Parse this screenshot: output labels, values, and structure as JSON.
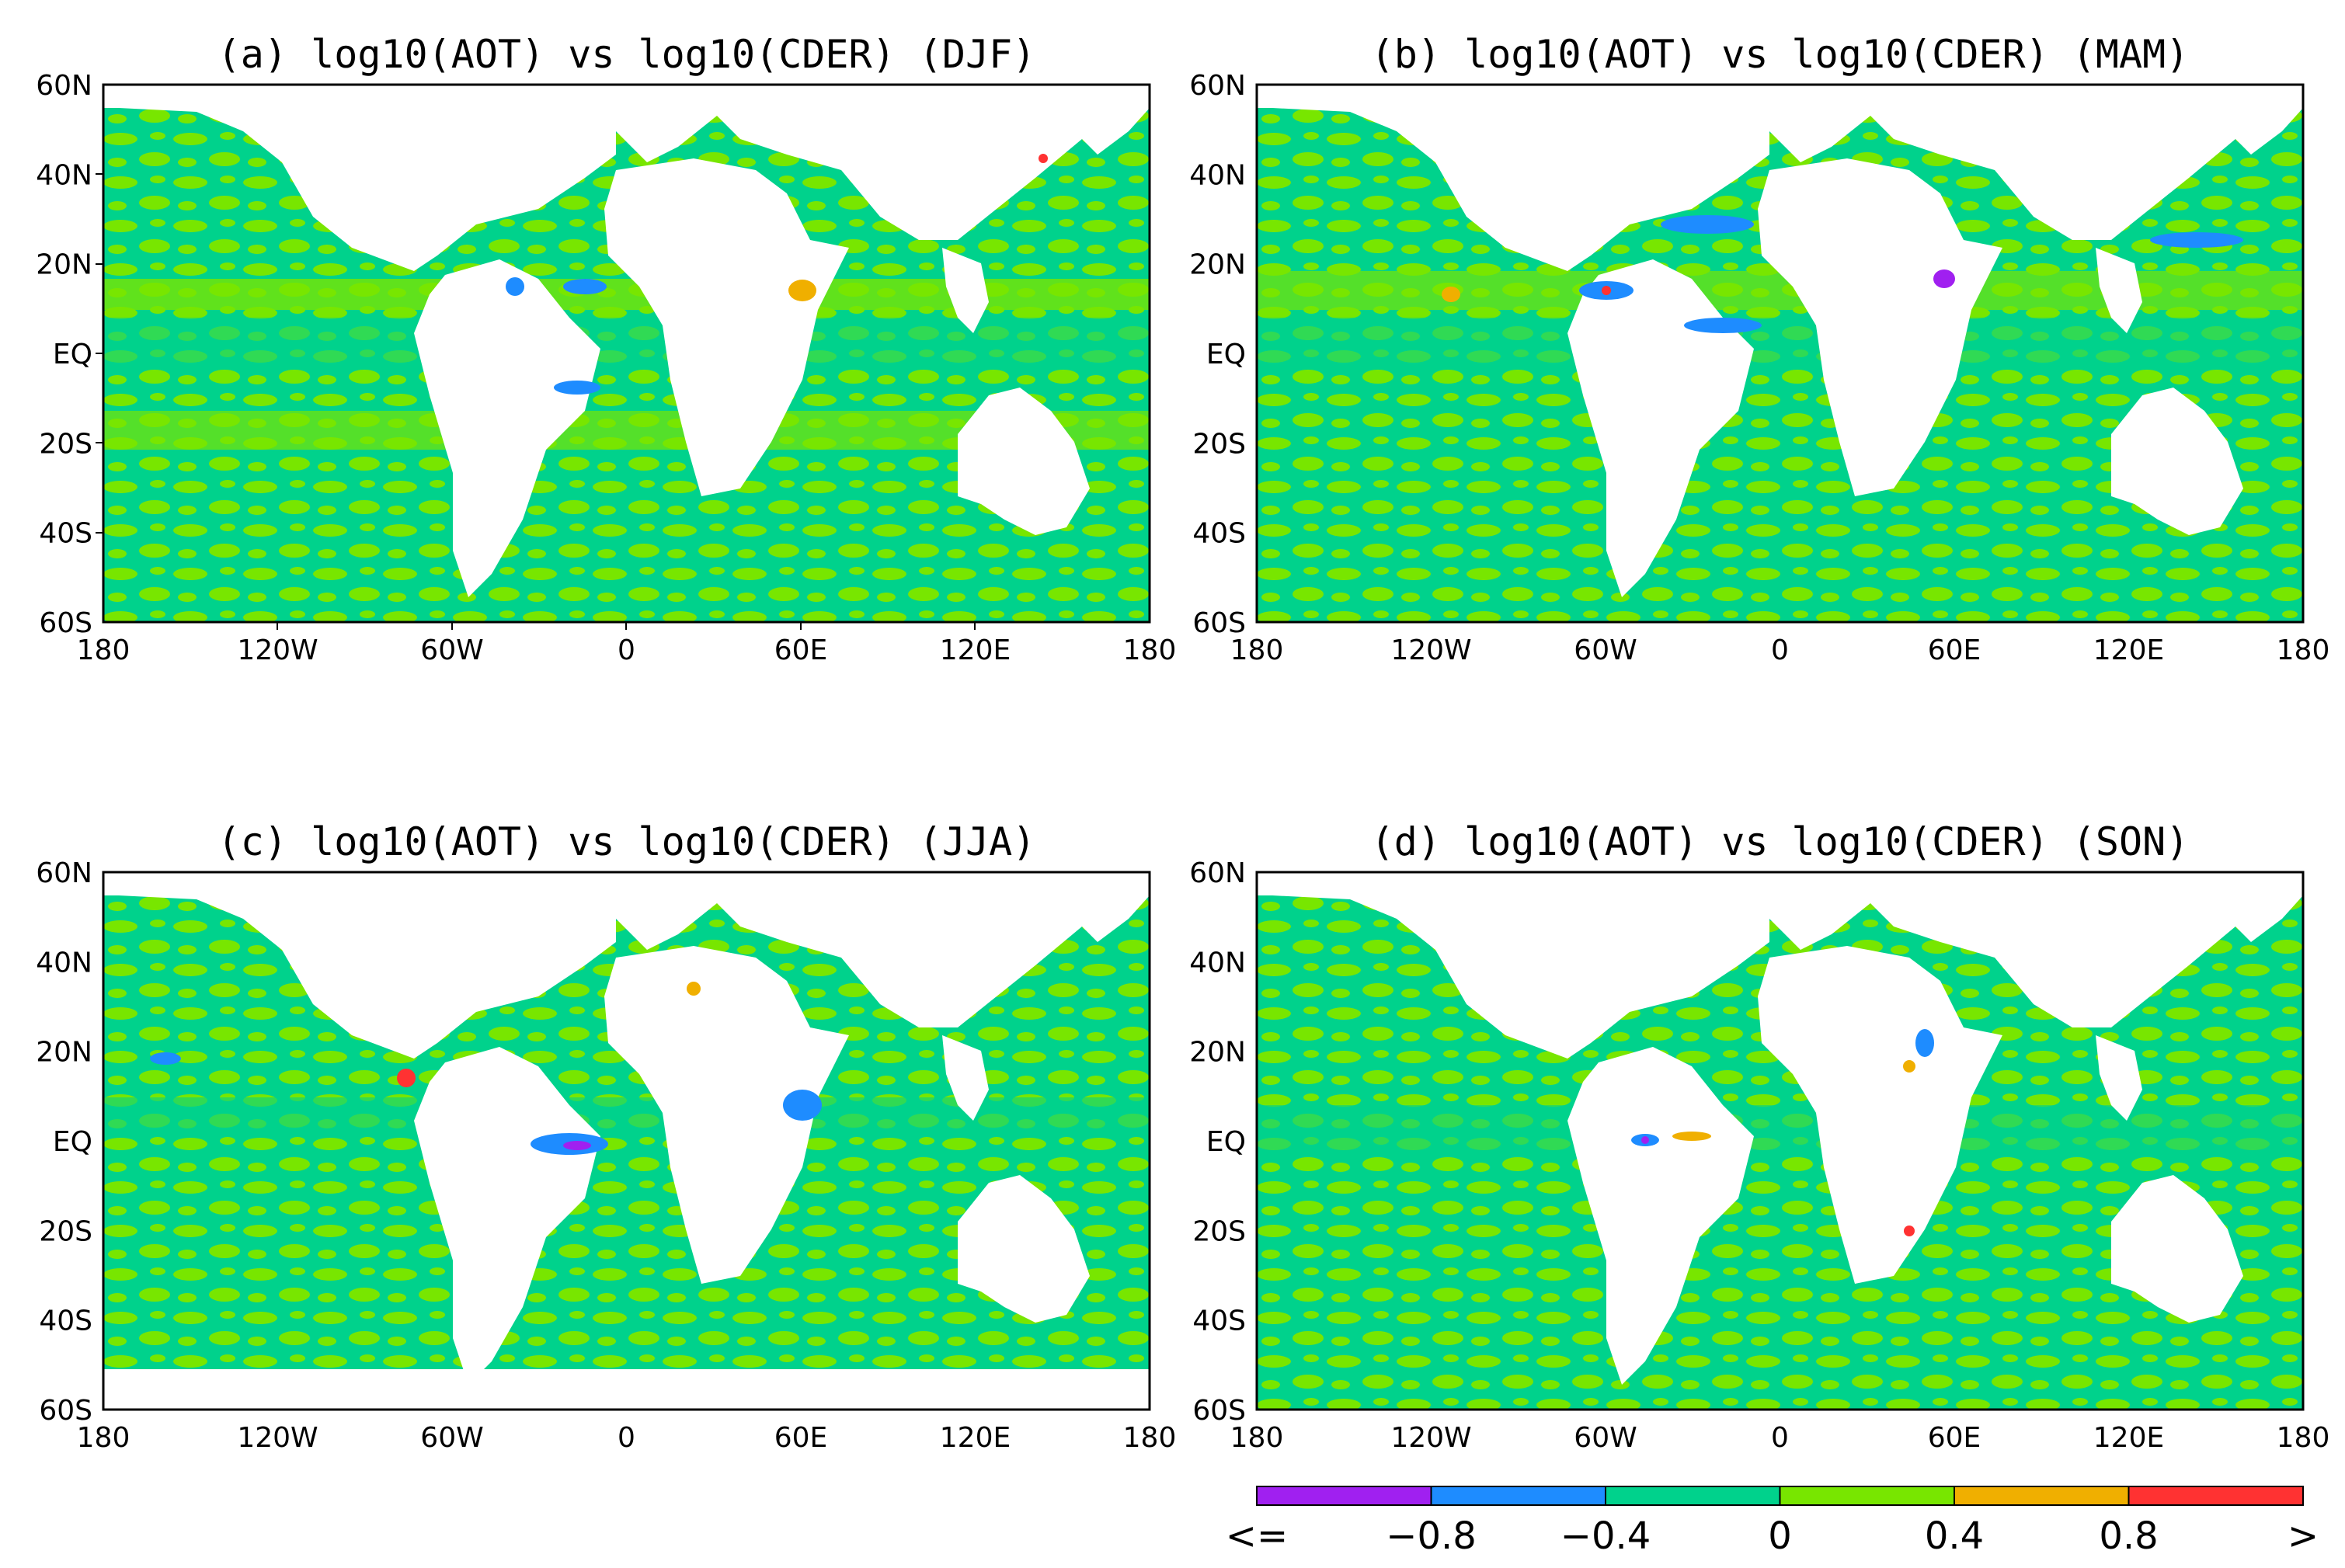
{
  "panels": [
    {
      "id": "a",
      "title": "(a) log10(AOT) vs log10(CDER) (DJF)"
    },
    {
      "id": "b",
      "title": "(b) log10(AOT) vs log10(CDER) (MAM)"
    },
    {
      "id": "c",
      "title": "(c) log10(AOT) vs log10(CDER) (JJA)"
    },
    {
      "id": "d",
      "title": "(d) log10(AOT) vs log10(CDER) (SON)"
    }
  ],
  "lat_ticks": [
    "60N",
    "40N",
    "20N",
    "EQ",
    "20S",
    "40S",
    "60S"
  ],
  "lon_ticks": [
    "180",
    "120W",
    "60W",
    "0",
    "60E",
    "120E",
    "180"
  ],
  "map_extent": {
    "lon": [
      -180,
      180
    ],
    "lat": [
      -60,
      60
    ]
  },
  "colorbar": {
    "colors": [
      "#a020f0",
      "#1e8cff",
      "#00d28c",
      "#78e600",
      "#f0af00",
      "#ff3232"
    ],
    "labels": [
      "<=",
      "−0.8",
      "−0.4",
      "0",
      "0.4",
      "0.8",
      ">"
    ]
  }
}
